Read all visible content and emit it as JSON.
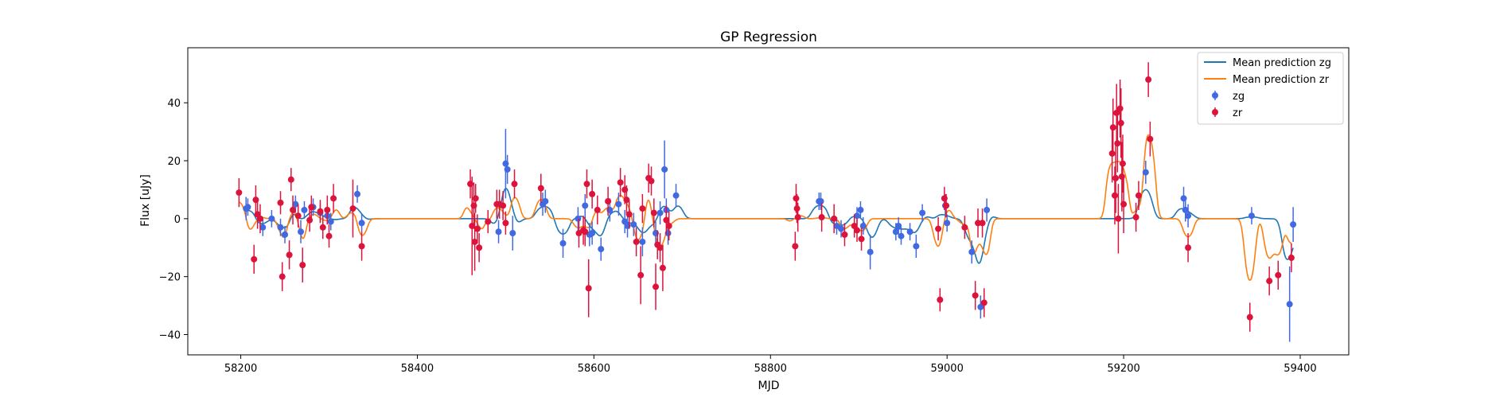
{
  "chart_data": {
    "type": "scatter",
    "title": "GP Regression",
    "xlabel": "MJD",
    "ylabel": "Flux [uJy]",
    "xlim": [
      58140,
      59455
    ],
    "ylim": [
      -47,
      59
    ],
    "xticks": [
      58200,
      58400,
      58600,
      58800,
      59000,
      59200,
      59400
    ],
    "yticks": [
      -40,
      -20,
      0,
      20,
      40
    ],
    "legend_position": "upper right",
    "colors": {
      "zg_point": "#4169e1",
      "zr_point": "#dc143c",
      "zg_line": "#1f77b4",
      "zr_line": "#ff7f0e"
    },
    "legend": [
      {
        "label": "Mean prediction zg",
        "kind": "line",
        "color": "#1f77b4"
      },
      {
        "label": "Mean prediction zr",
        "kind": "line",
        "color": "#ff7f0e"
      },
      {
        "label": "zg",
        "kind": "errorbar",
        "color": "#4169e1"
      },
      {
        "label": "zr",
        "kind": "errorbar",
        "color": "#dc143c"
      }
    ],
    "series": [
      {
        "name": "zg",
        "points": [
          [
            58206,
            3.5,
            4
          ],
          [
            58208,
            4,
            3
          ],
          [
            58225,
            -3,
            3
          ],
          [
            58235,
            0,
            3
          ],
          [
            58245,
            -3,
            3
          ],
          [
            58250,
            -5.5,
            3
          ],
          [
            58262,
            5,
            3
          ],
          [
            58268,
            -4.5,
            4
          ],
          [
            58272,
            3,
            3
          ],
          [
            58282,
            4,
            3
          ],
          [
            58290,
            2,
            3
          ],
          [
            58298,
            1,
            3
          ],
          [
            58302,
            -1,
            3
          ],
          [
            58332,
            8.5,
            3
          ],
          [
            58337,
            -1.5,
            3
          ],
          [
            58492,
            -4.5,
            4
          ],
          [
            58500,
            19,
            12
          ],
          [
            58502,
            17,
            5
          ],
          [
            58508,
            -5,
            6
          ],
          [
            58542,
            5,
            4
          ],
          [
            58545,
            6,
            4
          ],
          [
            58565,
            -8.5,
            5
          ],
          [
            58582,
            0,
            4
          ],
          [
            58590,
            4.5,
            4
          ],
          [
            58595,
            -5.5,
            4
          ],
          [
            58598,
            -5,
            4
          ],
          [
            58608,
            -10.5,
            4
          ],
          [
            58618,
            3,
            4
          ],
          [
            58628,
            5,
            4
          ],
          [
            58635,
            -1,
            4
          ],
          [
            58638,
            -2.5,
            4
          ],
          [
            58645,
            -2,
            4
          ],
          [
            58655,
            -8,
            5
          ],
          [
            58670,
            -5,
            4
          ],
          [
            58675,
            2,
            4
          ],
          [
            58680,
            17,
            10
          ],
          [
            58682,
            3,
            4
          ],
          [
            58684,
            -5,
            4
          ],
          [
            58693,
            8,
            4
          ],
          [
            58855,
            6,
            3
          ],
          [
            58857,
            6,
            3
          ],
          [
            58875,
            -2.5,
            3
          ],
          [
            58880,
            -3.5,
            3
          ],
          [
            58898,
            1,
            3
          ],
          [
            58902,
            3,
            3
          ],
          [
            58905,
            -2.5,
            3
          ],
          [
            58913,
            -11.5,
            6
          ],
          [
            58942,
            -4.5,
            3
          ],
          [
            58945,
            -2.5,
            3
          ],
          [
            58948,
            -6,
            3
          ],
          [
            58958,
            -4.5,
            3
          ],
          [
            58965,
            -9.5,
            4
          ],
          [
            58972,
            2,
            3
          ],
          [
            58998,
            4.5,
            4
          ],
          [
            59000,
            -1.5,
            3
          ],
          [
            59028,
            -11.5,
            4
          ],
          [
            59038,
            -30.5,
            4
          ],
          [
            59045,
            3,
            4
          ],
          [
            59225,
            16,
            4
          ],
          [
            59268,
            7,
            4
          ],
          [
            59270,
            3,
            4
          ],
          [
            59273,
            1,
            4
          ],
          [
            59345,
            1,
            3
          ],
          [
            59388,
            -29.5,
            13
          ],
          [
            59392,
            -2,
            6
          ]
        ]
      },
      {
        "name": "zr",
        "points": [
          [
            58198,
            9,
            5
          ],
          [
            58215,
            -14,
            5
          ],
          [
            58217,
            6.5,
            5
          ],
          [
            58219,
            1.5,
            5
          ],
          [
            58222,
            0,
            5
          ],
          [
            58245,
            5.5,
            4
          ],
          [
            58247,
            -20,
            5
          ],
          [
            58255,
            -12.5,
            5
          ],
          [
            58257,
            13.5,
            4
          ],
          [
            58259,
            3,
            5
          ],
          [
            58265,
            1,
            4
          ],
          [
            58270,
            -16,
            6
          ],
          [
            58278,
            -0.5,
            4
          ],
          [
            58280,
            4,
            4
          ],
          [
            58290,
            2.5,
            4
          ],
          [
            58293,
            -3,
            4
          ],
          [
            58298,
            3,
            5
          ],
          [
            58300,
            -6,
            4
          ],
          [
            58305,
            7,
            5
          ],
          [
            58327,
            3.5,
            10
          ],
          [
            58337,
            -9.5,
            5
          ],
          [
            58460,
            12,
            5
          ],
          [
            58462,
            -2.5,
            17
          ],
          [
            58464,
            4.5,
            8
          ],
          [
            58466,
            7,
            5
          ],
          [
            58468,
            -3.5,
            5
          ],
          [
            58470,
            -10,
            5
          ],
          [
            58465,
            -8,
            10
          ],
          [
            58480,
            -1,
            4
          ],
          [
            58490,
            5,
            5
          ],
          [
            58493,
            5,
            5
          ],
          [
            58497,
            4.5,
            5
          ],
          [
            58500,
            -1.5,
            4
          ],
          [
            58510,
            12,
            5
          ],
          [
            58540,
            10.5,
            5
          ],
          [
            58583,
            -5,
            5
          ],
          [
            58588,
            -4,
            5
          ],
          [
            58590,
            -4.5,
            5
          ],
          [
            58592,
            12,
            5
          ],
          [
            58594,
            -24,
            10
          ],
          [
            58598,
            8.5,
            5
          ],
          [
            58604,
            3,
            5
          ],
          [
            58616,
            6,
            5
          ],
          [
            58630,
            12.5,
            5
          ],
          [
            58635,
            10,
            5
          ],
          [
            58637,
            6.5,
            5
          ],
          [
            58640,
            1.5,
            5
          ],
          [
            58648,
            -8,
            5
          ],
          [
            58653,
            -19.5,
            10
          ],
          [
            58655,
            3.5,
            5
          ],
          [
            58662,
            14,
            5
          ],
          [
            58665,
            13,
            5
          ],
          [
            58668,
            2,
            5
          ],
          [
            58670,
            -23.5,
            8
          ],
          [
            58672,
            -9,
            5
          ],
          [
            58675,
            -10,
            5
          ],
          [
            58678,
            -17,
            8
          ],
          [
            58682,
            -0.5,
            5
          ],
          [
            58685,
            -2.5,
            5
          ],
          [
            58828,
            -9.5,
            5
          ],
          [
            58829,
            7,
            5
          ],
          [
            58830,
            3.5,
            5
          ],
          [
            58831,
            0.5,
            5
          ],
          [
            58858,
            0.5,
            5
          ],
          [
            58872,
            0,
            5
          ],
          [
            58884,
            -5.5,
            4
          ],
          [
            58895,
            -2.5,
            4
          ],
          [
            58898,
            -4,
            4
          ],
          [
            58903,
            -7,
            4
          ],
          [
            58990,
            -3.5,
            4
          ],
          [
            58992,
            -28,
            4
          ],
          [
            58997,
            7,
            4
          ],
          [
            58999,
            4.5,
            4
          ],
          [
            59020,
            -3,
            4
          ],
          [
            59032,
            -26.5,
            5
          ],
          [
            59035,
            -1.5,
            5
          ],
          [
            59040,
            -1.5,
            5
          ],
          [
            59042,
            -29,
            5
          ],
          [
            59187,
            22.5,
            10
          ],
          [
            59188,
            31.5,
            10
          ],
          [
            59190,
            8,
            10
          ],
          [
            59191,
            14,
            12
          ],
          [
            59192,
            36.5,
            10
          ],
          [
            59193,
            26,
            10
          ],
          [
            59194,
            0,
            12
          ],
          [
            59196,
            38,
            10
          ],
          [
            59197,
            33,
            12
          ],
          [
            59198,
            14.5,
            12
          ],
          [
            59199,
            19,
            10
          ],
          [
            59200,
            5,
            10
          ],
          [
            59214,
            0.5,
            5
          ],
          [
            59217,
            8,
            5
          ],
          [
            59228,
            48,
            6
          ],
          [
            59230,
            27.5,
            6
          ],
          [
            59273,
            -10,
            5
          ],
          [
            59343,
            -34,
            5
          ],
          [
            59365,
            -21.5,
            5
          ],
          [
            59375,
            -19.5,
            5
          ],
          [
            59390,
            -13.5,
            5
          ]
        ]
      }
    ]
  }
}
